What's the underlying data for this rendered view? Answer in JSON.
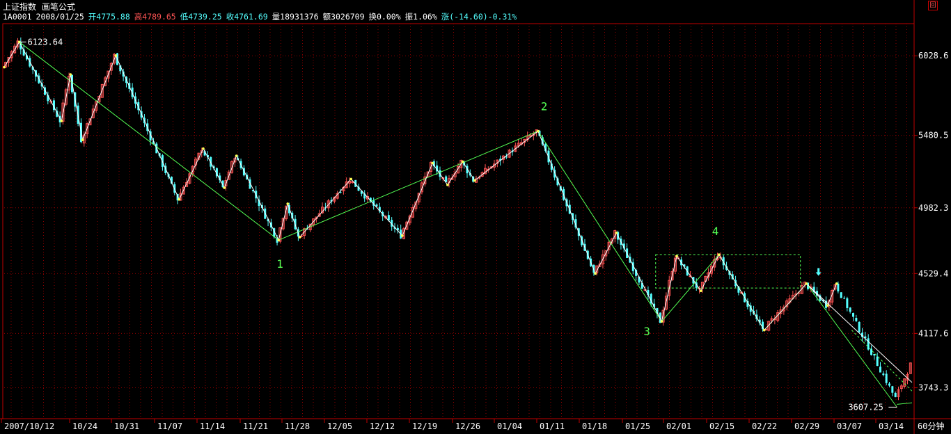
{
  "header": {
    "index_name": "上证指数",
    "indicator_name": "画笔公式",
    "code": "1A0001",
    "date": "2008/01/25",
    "open": "开4775.88",
    "high": "高4789.65",
    "low": "低4739.25",
    "close": "收4761.69",
    "volume": "量18931376",
    "amount": "额3026709",
    "turnover": "换0.00%",
    "amplitude": "振1.06%",
    "change": "涨(-14.60)-0.31%",
    "close_box": "回",
    "period": "60分钟"
  },
  "colors": {
    "background": "#000000",
    "up_candle": "#ff5454",
    "down_candle": "#54ffff",
    "grid": "#8b0000",
    "zigzag_small": "#ffffff",
    "zigzag_major": "#54ff54",
    "pivot_dot": "#ffff54",
    "label_green": "#54ff54",
    "arrow": "#54ffff"
  },
  "chart_data": {
    "type": "candlestick",
    "ylim": [
      3540,
      6250
    ],
    "y_ticks": [
      "6028.6",
      "5480.5",
      "4982.3",
      "4529.4",
      "4117.6",
      "3743.3"
    ],
    "x_ticks": [
      "2007/10/12",
      "10/24",
      "10/31",
      "11/07",
      "11/14",
      "11/21",
      "11/28",
      "12/05",
      "12/12",
      "12/19",
      "12/26",
      "01/04",
      "01/11",
      "01/18",
      "01/25",
      "02/01",
      "02/15",
      "02/22",
      "02/29",
      "03/07",
      "03/14"
    ],
    "max_label": "6123.64",
    "min_label": "3607.25",
    "wave_labels": [
      "1",
      "2",
      "3",
      "4"
    ],
    "zigzag_small": [
      {
        "bar": 0,
        "y": 5950
      },
      {
        "bar": 5,
        "y": 6124
      },
      {
        "bar": 19,
        "y": 5580
      },
      {
        "bar": 22,
        "y": 5900
      },
      {
        "bar": 26,
        "y": 5450
      },
      {
        "bar": 37,
        "y": 6030
      },
      {
        "bar": 58,
        "y": 5040
      },
      {
        "bar": 66,
        "y": 5390
      },
      {
        "bar": 73,
        "y": 5120
      },
      {
        "bar": 77,
        "y": 5340
      },
      {
        "bar": 91,
        "y": 4760
      },
      {
        "bar": 94,
        "y": 5010
      },
      {
        "bar": 98,
        "y": 4780
      },
      {
        "bar": 115,
        "y": 5180
      },
      {
        "bar": 132,
        "y": 4790
      },
      {
        "bar": 142,
        "y": 5290
      },
      {
        "bar": 147,
        "y": 5140
      },
      {
        "bar": 152,
        "y": 5300
      },
      {
        "bar": 156,
        "y": 5170
      },
      {
        "bar": 177,
        "y": 5510
      },
      {
        "bar": 196,
        "y": 4530
      },
      {
        "bar": 203,
        "y": 4810
      },
      {
        "bar": 218,
        "y": 4200
      },
      {
        "bar": 223,
        "y": 4650
      },
      {
        "bar": 231,
        "y": 4410
      },
      {
        "bar": 237,
        "y": 4660
      },
      {
        "bar": 252,
        "y": 4140
      },
      {
        "bar": 266,
        "y": 4460
      },
      {
        "bar": 273,
        "y": 4310
      },
      {
        "bar": 276,
        "y": 4460
      },
      {
        "bar": 301,
        "y": 3900
      },
      {
        "bar": 296,
        "y": 3670
      }
    ],
    "zigzag_major": [
      {
        "bar": 5,
        "y": 6124
      },
      {
        "bar": 91,
        "y": 4760
      },
      {
        "bar": 177,
        "y": 5510
      },
      {
        "bar": 218,
        "y": 4200
      },
      {
        "bar": 237,
        "y": 4660
      },
      {
        "bar": 252,
        "y": 4140
      },
      {
        "bar": 266,
        "y": 4460
      },
      {
        "bar": 296,
        "y": 3610
      }
    ],
    "channel_box": {
      "bar_from": 216,
      "bar_to": 264,
      "y_high": 4660,
      "y_low": 4430
    },
    "total_bars": 301
  }
}
